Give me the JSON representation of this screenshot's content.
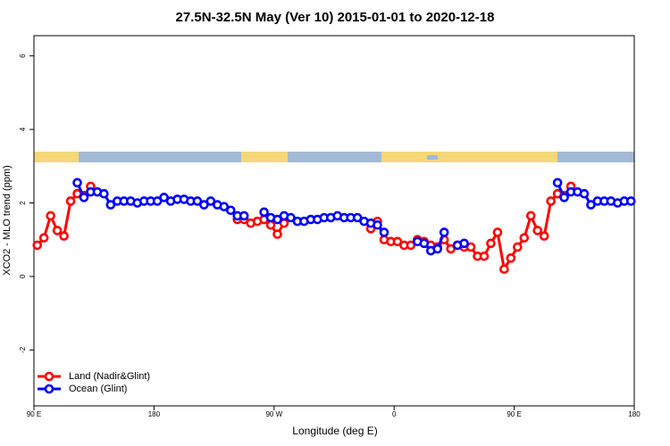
{
  "chart_data": {
    "type": "line",
    "title": "27.5N-32.5N May (Ver 10)   2015-01-01 to 2020-12-18",
    "x_label": "Longitude (deg E)",
    "y_label": "XCO2 - MLO trend (ppm)",
    "x": [
      92.5,
      97.5,
      102.5,
      107.5,
      112.5,
      117.5,
      122.5,
      127.5,
      132.5,
      137.5,
      142.5,
      147.5,
      152.5,
      157.5,
      162.5,
      167.5,
      172.5,
      177.5,
      182.5,
      187.5,
      192.5,
      197.5,
      202.5,
      207.5,
      212.5,
      217.5,
      222.5,
      227.5,
      232.5,
      237.5,
      242.5,
      247.5,
      252.5,
      257.5,
      262.5,
      267.5,
      272.5,
      277.5,
      282.5,
      287.5,
      292.5,
      297.5,
      302.5,
      307.5,
      312.5,
      317.5,
      322.5,
      327.5,
      332.5,
      337.5,
      342.5,
      347.5,
      352.5,
      357.5,
      362.5,
      367.5,
      372.5,
      377.5,
      382.5,
      387.5,
      392.5,
      397.5,
      402.5,
      407.5,
      412.5,
      417.5,
      422.5,
      427.5,
      432.5,
      437.5,
      442.5,
      447.5,
      452.5,
      457.5,
      462.5,
      467.5,
      472.5,
      477.5,
      482.5,
      487.5,
      492.5,
      497.5,
      502.5,
      507.5,
      512.5,
      517.5,
      522.5,
      527.5,
      532.5,
      537.5
    ],
    "series": [
      {
        "name": "Land (Nadir&Glint)",
        "color": "#ff0000",
        "values": [
          0.85,
          1.05,
          1.65,
          1.25,
          1.1,
          2.05,
          2.25,
          2.2,
          2.45,
          null,
          null,
          null,
          null,
          null,
          null,
          null,
          null,
          null,
          null,
          null,
          null,
          null,
          null,
          null,
          null,
          null,
          null,
          null,
          null,
          null,
          1.55,
          1.55,
          1.45,
          1.5,
          1.55,
          1.4,
          1.15,
          1.45,
          null,
          null,
          null,
          null,
          null,
          null,
          null,
          null,
          null,
          null,
          null,
          null,
          1.3,
          1.5,
          1.0,
          0.95,
          0.95,
          0.85,
          0.85,
          1.0,
          0.95,
          0.85,
          0.8,
          1.0,
          0.75,
          0.85,
          0.8,
          0.8,
          0.55,
          0.55,
          0.9,
          1.2,
          0.2,
          0.5,
          0.8,
          1.05,
          1.65,
          1.25,
          1.1,
          2.05,
          2.25,
          2.2,
          2.45,
          null,
          null,
          null,
          null,
          null,
          null,
          null,
          null,
          null
        ]
      },
      {
        "name": "Ocean (Glint)",
        "color": "#0000ff",
        "values": [
          null,
          null,
          null,
          null,
          null,
          null,
          2.55,
          2.15,
          2.3,
          2.3,
          2.25,
          1.95,
          2.05,
          2.05,
          2.05,
          2.0,
          2.05,
          2.05,
          2.05,
          2.15,
          2.05,
          2.1,
          2.1,
          2.05,
          2.05,
          1.95,
          2.05,
          1.95,
          1.9,
          1.8,
          1.65,
          1.65,
          null,
          null,
          1.75,
          1.6,
          1.55,
          1.65,
          1.6,
          1.5,
          1.5,
          1.55,
          1.55,
          1.6,
          1.6,
          1.65,
          1.6,
          1.6,
          1.6,
          1.5,
          1.45,
          1.4,
          1.2,
          null,
          null,
          null,
          null,
          0.95,
          0.9,
          0.7,
          0.75,
          1.2,
          null,
          0.85,
          0.9,
          null,
          null,
          null,
          null,
          null,
          null,
          null,
          null,
          null,
          null,
          null,
          null,
          null,
          2.55,
          2.15,
          2.3,
          2.3,
          2.25,
          1.95,
          2.05,
          2.05,
          2.05,
          2.0,
          2.05,
          2.05
        ]
      }
    ],
    "xlim": [
      90,
      540
    ],
    "xticks": [
      {
        "value": 90,
        "label": "90 E"
      },
      180,
      {
        "value": 270,
        "label": "90 W"
      },
      {
        "value": 360,
        "label": "0"
      },
      {
        "value": 450,
        "label": "90 E"
      },
      {
        "value": 540,
        "label": "180"
      }
    ],
    "ylim": [
      -3.52,
      6.55
    ],
    "yticks": [
      -2,
      0,
      2,
      4,
      6
    ],
    "legend": "bottom-left"
  }
}
